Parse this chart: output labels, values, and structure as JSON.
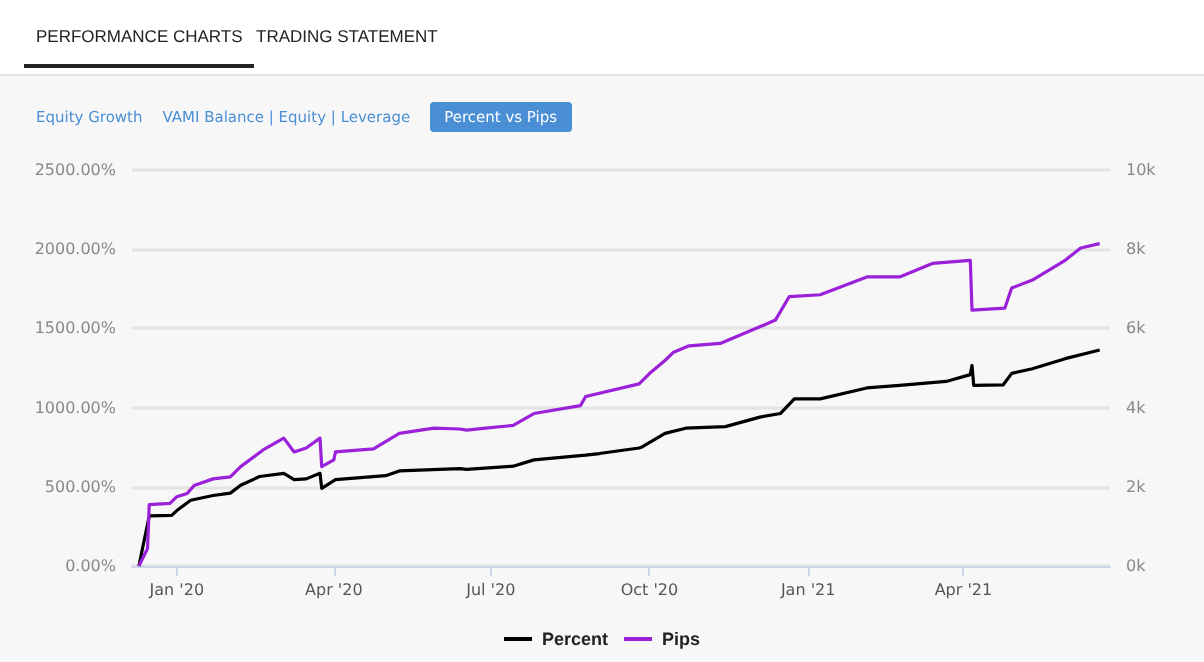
{
  "chart_data": {
    "type": "line",
    "annotations": [
      "PERFORMANCE CHARTS",
      "TRADING STATEMENT",
      "Equity Growth",
      "VAMI Balance | Equity | Leverage",
      "Percent vs Pips"
    ],
    "xlim": [
      "2019-12-06",
      "2021-06-25"
    ],
    "xticks": [
      {
        "value": "2020-01-01",
        "label": "Jan '20"
      },
      {
        "value": "2020-04-01",
        "label": "Apr '20"
      },
      {
        "value": "2020-07-01",
        "label": "Jul '20"
      },
      {
        "value": "2020-10-01",
        "label": "Oct '20"
      },
      {
        "value": "2021-01-01",
        "label": "Jan '21"
      },
      {
        "value": "2021-04-01",
        "label": "Apr '21"
      }
    ],
    "ylim": [
      0,
      2500
    ],
    "yticks": [
      {
        "value": 0,
        "label": "0.00%"
      },
      {
        "value": 500,
        "label": "500.00%"
      },
      {
        "value": 1000,
        "label": "1000.00%"
      },
      {
        "value": 1500,
        "label": "1500.00%"
      },
      {
        "value": 2000,
        "label": "2000.00%"
      },
      {
        "value": 2500,
        "label": "2500.00%"
      }
    ],
    "y2lim": [
      0,
      10000
    ],
    "y2ticks": [
      {
        "value": 0,
        "label": "0k"
      },
      {
        "value": 2000,
        "label": "2k"
      },
      {
        "value": 4000,
        "label": "4k"
      },
      {
        "value": 6000,
        "label": "6k"
      },
      {
        "value": 8000,
        "label": "8k"
      },
      {
        "value": 10000,
        "label": "10k"
      }
    ],
    "grid": "y",
    "legend": "bottom",
    "marker": "none",
    "series": [
      {
        "name": "Percent",
        "color": "#000000",
        "x": [
          "2019-12-10",
          "2019-12-16",
          "2019-12-29",
          "2020-01-01",
          "2020-01-09",
          "2020-01-22",
          "2020-02-01",
          "2020-02-07",
          "2020-02-18",
          "2020-03-03",
          "2020-03-09",
          "2020-03-16",
          "2020-03-24",
          "2020-03-25",
          "2020-04-02",
          "2020-05-01",
          "2020-05-09",
          "2020-06-13",
          "2020-06-17",
          "2020-07-14",
          "2020-07-26",
          "2020-08-25",
          "2020-09-02",
          "2020-09-25",
          "2020-09-27",
          "2020-10-10",
          "2020-10-22",
          "2020-11-14",
          "2020-12-04",
          "2020-12-16",
          "2020-12-24",
          "2021-01-08",
          "2021-02-04",
          "2021-02-23",
          "2021-03-22",
          "2021-04-05",
          "2021-04-06",
          "2021-04-07",
          "2021-04-24",
          "2021-04-29",
          "2021-05-11",
          "2021-05-30",
          "2021-06-19"
        ],
        "values": [
          0,
          316,
          320,
          350,
          415,
          445,
          460,
          510,
          565,
          585,
          545,
          550,
          585,
          490,
          545,
          570,
          600,
          615,
          610,
          630,
          670,
          700,
          710,
          745,
          753,
          837,
          870,
          880,
          940,
          963,
          1055,
          1055,
          1124,
          1140,
          1165,
          1208,
          1266,
          1140,
          1143,
          1216,
          1245,
          1309,
          1364
        ]
      },
      {
        "name": "Pips",
        "color": "#9b20d9",
        "axis": "y2",
        "x": [
          "2019-12-10",
          "2019-12-15",
          "2019-12-16",
          "2019-12-28",
          "2020-01-01",
          "2020-01-07",
          "2020-01-11",
          "2020-01-22",
          "2020-02-01",
          "2020-02-07",
          "2020-02-20",
          "2020-03-03",
          "2020-03-09",
          "2020-03-16",
          "2020-03-24",
          "2020-03-25",
          "2020-04-01",
          "2020-04-02",
          "2020-04-24",
          "2020-05-09",
          "2020-05-29",
          "2020-06-13",
          "2020-06-17",
          "2020-06-28",
          "2020-07-14",
          "2020-07-26",
          "2020-08-22",
          "2020-08-25",
          "2020-09-25",
          "2020-10-01",
          "2020-10-10",
          "2020-10-15",
          "2020-10-24",
          "2020-11-11",
          "2020-12-04",
          "2020-12-13",
          "2020-12-21",
          "2021-01-08",
          "2021-02-04",
          "2021-02-23",
          "2021-03-14",
          "2021-04-05",
          "2021-04-06",
          "2021-04-25",
          "2021-04-29",
          "2021-05-11",
          "2021-05-30",
          "2021-06-08",
          "2021-06-19"
        ],
        "values": [
          0,
          440,
          1550,
          1580,
          1750,
          1830,
          2035,
          2200,
          2250,
          2510,
          2930,
          3230,
          2880,
          2980,
          3230,
          2510,
          2680,
          2880,
          2960,
          3350,
          3480,
          3460,
          3430,
          3480,
          3550,
          3850,
          4050,
          4280,
          4600,
          4860,
          5190,
          5400,
          5560,
          5620,
          6040,
          6210,
          6800,
          6850,
          7300,
          7300,
          7640,
          7720,
          6460,
          6510,
          7020,
          7220,
          7720,
          8030,
          8140
        ]
      }
    ]
  }
}
